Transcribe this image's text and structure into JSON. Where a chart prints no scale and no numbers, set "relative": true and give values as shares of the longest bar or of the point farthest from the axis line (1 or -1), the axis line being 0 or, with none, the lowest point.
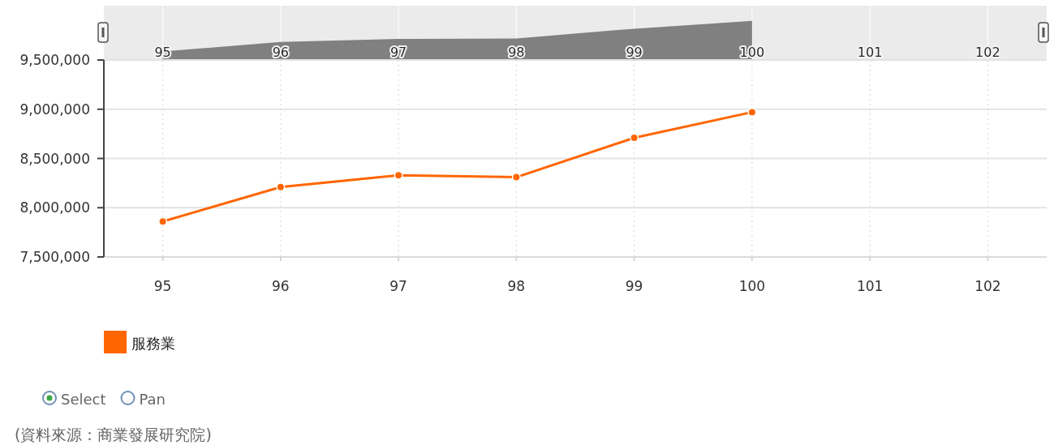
{
  "chart_data": [
    {
      "type": "area",
      "relative": true,
      "x": [
        95,
        96,
        97,
        98,
        99,
        100
      ],
      "xlim": [
        94.5,
        102.5
      ],
      "xticks": [
        95,
        96,
        97,
        98,
        99,
        100,
        101,
        102
      ],
      "grid": "x",
      "series": [
        {
          "color": "#808080",
          "values": [
            0.22,
            0.46,
            0.54,
            0.55,
            0.8,
            1
          ]
        }
      ]
    },
    {
      "type": "line",
      "x": [
        95,
        96,
        97,
        98,
        99,
        100
      ],
      "xlim": [
        94.5,
        102.5
      ],
      "xticks": [
        95,
        96,
        97,
        98,
        99,
        100,
        101,
        102
      ],
      "ylim": [
        7500000,
        9500000
      ],
      "yticks": [
        {
          "value": 7500000,
          "label": "7,500,000"
        },
        {
          "value": 8000000,
          "label": "8,000,000"
        },
        {
          "value": 8500000,
          "label": "8,500,000"
        },
        {
          "value": 9000000,
          "label": "9,000,000"
        },
        {
          "value": 9500000,
          "label": "9,500,000"
        }
      ],
      "grid": true,
      "legend": "bottom left",
      "marker": "circle",
      "series": [
        {
          "name": "服務業",
          "color": "#ff6600",
          "values": [
            7860000,
            8210000,
            8330000,
            8310000,
            8710000,
            8970000
          ]
        }
      ],
      "annotations": [
        "Select",
        "Pan",
        "(資料來源：商業發展研究院)"
      ]
    }
  ]
}
